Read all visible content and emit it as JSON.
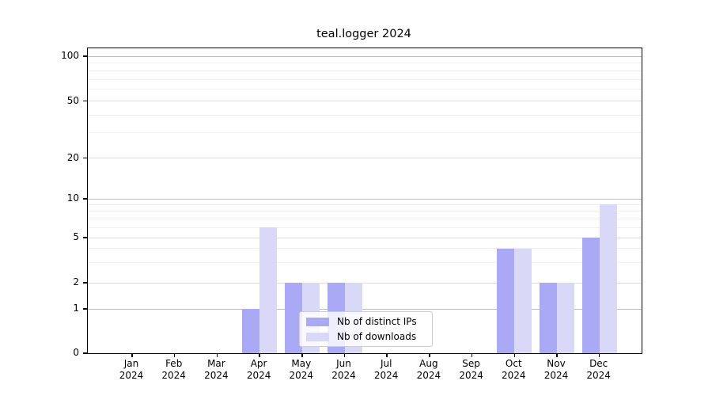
{
  "chart_data": {
    "type": "bar",
    "title": "teal.logger 2024",
    "categories": [
      "Jan",
      "Feb",
      "Mar",
      "Apr",
      "May",
      "Jun",
      "Jul",
      "Aug",
      "Sep",
      "Oct",
      "Nov",
      "Dec"
    ],
    "x_year_label": "2024",
    "series": [
      {
        "name": "Nb of distinct IPs",
        "color": "#a9a9f5",
        "values": [
          0,
          0,
          0,
          1,
          2,
          2,
          0,
          0,
          0,
          4,
          2,
          5
        ]
      },
      {
        "name": "Nb of downloads",
        "color": "#d9d9f7",
        "values": [
          0,
          0,
          0,
          6,
          2,
          2,
          0,
          0,
          0,
          4,
          2,
          9
        ]
      }
    ],
    "yscale": "symlog (linear 0-1, log above)",
    "ytick_labels": [
      "0",
      "1",
      "2",
      "5",
      "10",
      "20",
      "50",
      "100"
    ],
    "ytick_values": [
      0,
      1,
      2,
      5,
      10,
      20,
      50,
      100
    ],
    "minor_gridline_values": [
      3,
      4,
      6,
      7,
      8,
      9,
      30,
      40,
      60,
      70,
      80,
      90
    ],
    "ylim": [
      0,
      113
    ],
    "grid": true,
    "legend": {
      "entries": [
        "Nb of distinct IPs",
        "Nb of downloads"
      ],
      "position": "lower center"
    }
  }
}
